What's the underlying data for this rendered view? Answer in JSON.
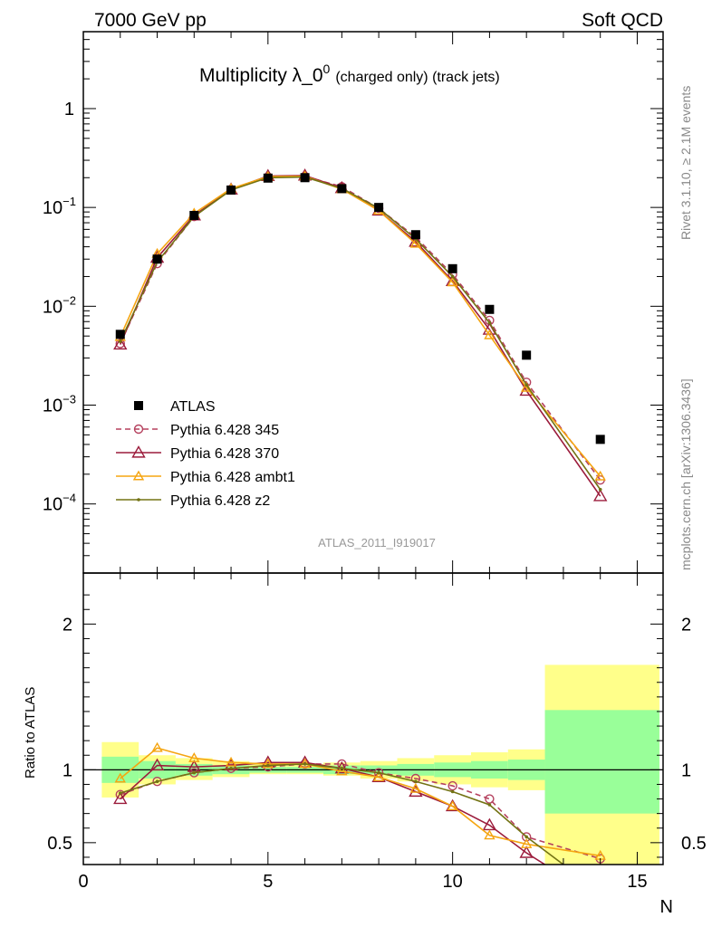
{
  "header": {
    "left": "7000 GeV pp",
    "right": "Soft QCD"
  },
  "side_labels": {
    "rivet": "Rivet 3.1.10, ≥ 2.1M events",
    "mcplots": "mcplots.cern.ch [arXiv:1306.3436]"
  },
  "chart_data": [
    {
      "type": "scatter",
      "title": "Multiplicity λ_0⁰ (charged only) (track jets)",
      "title_main": "Multiplicity λ_0",
      "title_sup": "0",
      "title_suffix": "(charged only) (track jets)",
      "watermark": "ATLAS_2011_I919017",
      "xlim": [
        0,
        15.7
      ],
      "ylim": [
        2e-05,
        6
      ],
      "yscale": "log",
      "y_tick_labels": [
        {
          "value": 0.0001,
          "base": "10",
          "exp": "−4"
        },
        {
          "value": 0.001,
          "base": "10",
          "exp": "−3"
        },
        {
          "value": 0.01,
          "base": "10",
          "exp": "−2"
        },
        {
          "value": 0.1,
          "base": "10",
          "exp": "−1"
        },
        {
          "value": 1,
          "base": "1",
          "exp": ""
        }
      ],
      "legend_position": "bottom-left",
      "data": {
        "name": "ATLAS",
        "x": [
          1,
          2,
          3,
          4,
          5,
          6,
          7,
          8,
          9,
          10,
          11,
          12,
          14
        ],
        "y": [
          0.0052,
          0.03,
          0.083,
          0.15,
          0.198,
          0.2,
          0.155,
          0.1,
          0.053,
          0.024,
          0.0093,
          0.0032,
          0.00045
        ]
      },
      "series": [
        {
          "name": "Pythia 6.428 345",
          "color": "#b5415e",
          "marker": "circle",
          "dashed": true,
          "x": [
            1,
            2,
            3,
            4,
            5,
            6,
            7,
            8,
            9,
            10,
            11,
            12,
            14
          ],
          "y": [
            0.0042,
            0.027,
            0.081,
            0.152,
            0.203,
            0.206,
            0.162,
            0.098,
            0.05,
            0.021,
            0.0072,
            0.0017,
            0.000175
          ]
        },
        {
          "name": "Pythia 6.428 370",
          "color": "#9b1b3b",
          "marker": "triangle",
          "dashed": false,
          "x": [
            1,
            2,
            3,
            4,
            5,
            6,
            7,
            8,
            9,
            10,
            11,
            12,
            14
          ],
          "y": [
            0.0041,
            0.031,
            0.083,
            0.152,
            0.208,
            0.21,
            0.157,
            0.093,
            0.045,
            0.018,
            0.0058,
            0.0014,
            0.00012
          ]
        },
        {
          "name": "Pythia 6.428 ambt1",
          "color": "#f5a511",
          "marker": "triangle-small",
          "dashed": false,
          "x": [
            1,
            2,
            3,
            4,
            5,
            6,
            7,
            8,
            9,
            10,
            11,
            12,
            14
          ],
          "y": [
            0.0049,
            0.034,
            0.087,
            0.155,
            0.205,
            0.207,
            0.153,
            0.093,
            0.043,
            0.0175,
            0.0051,
            0.0015,
            0.00019
          ]
        },
        {
          "name": "Pythia 6.428 z2",
          "color": "#737314",
          "marker": "dot",
          "dashed": false,
          "x": [
            1,
            2,
            3,
            4,
            5,
            6,
            7,
            8,
            9,
            10,
            11,
            12,
            14
          ],
          "y": [
            0.0044,
            0.028,
            0.081,
            0.15,
            0.2,
            0.203,
            0.156,
            0.098,
            0.048,
            0.02,
            0.0068,
            0.0016,
            0.00014
          ]
        }
      ]
    },
    {
      "type": "line",
      "ylabel": "Ratio to ATLAS",
      "xlabel": "N",
      "xlim": [
        0,
        15.7
      ],
      "ylim": [
        0.35,
        2.35
      ],
      "x_ticks": [
        0,
        5,
        10,
        15
      ],
      "y_ticks": [
        0.5,
        1,
        2
      ],
      "bands": [
        {
          "x0": 0.5,
          "x1": 1.5,
          "g_lo": 0.91,
          "g_hi": 1.09,
          "y_lo": 0.81,
          "y_hi": 1.19
        },
        {
          "x0": 1.5,
          "x1": 2.5,
          "g_lo": 0.94,
          "g_hi": 1.06,
          "y_lo": 0.9,
          "y_hi": 1.1
        },
        {
          "x0": 2.5,
          "x1": 3.5,
          "g_lo": 0.96,
          "g_hi": 1.04,
          "y_lo": 0.93,
          "y_hi": 1.08
        },
        {
          "x0": 3.5,
          "x1": 4.5,
          "g_lo": 0.97,
          "g_hi": 1.03,
          "y_lo": 0.95,
          "y_hi": 1.06
        },
        {
          "x0": 4.5,
          "x1": 5.5,
          "g_lo": 0.98,
          "g_hi": 1.02,
          "y_lo": 0.97,
          "y_hi": 1.04
        },
        {
          "x0": 5.5,
          "x1": 6.5,
          "g_lo": 0.98,
          "g_hi": 1.02,
          "y_lo": 0.97,
          "y_hi": 1.04
        },
        {
          "x0": 6.5,
          "x1": 7.5,
          "g_lo": 0.97,
          "g_hi": 1.03,
          "y_lo": 0.96,
          "y_hi": 1.05
        },
        {
          "x0": 7.5,
          "x1": 8.5,
          "g_lo": 0.97,
          "g_hi": 1.03,
          "y_lo": 0.94,
          "y_hi": 1.06
        },
        {
          "x0": 8.5,
          "x1": 9.5,
          "g_lo": 0.96,
          "g_hi": 1.04,
          "y_lo": 0.92,
          "y_hi": 1.08
        },
        {
          "x0": 9.5,
          "x1": 10.5,
          "g_lo": 0.95,
          "g_hi": 1.05,
          "y_lo": 0.9,
          "y_hi": 1.1
        },
        {
          "x0": 10.5,
          "x1": 11.5,
          "g_lo": 0.94,
          "g_hi": 1.06,
          "y_lo": 0.88,
          "y_hi": 1.12
        },
        {
          "x0": 11.5,
          "x1": 12.5,
          "g_lo": 0.93,
          "g_hi": 1.07,
          "y_lo": 0.86,
          "y_hi": 1.14
        },
        {
          "x0": 12.5,
          "x1": 15.6,
          "g_lo": 0.7,
          "g_hi": 1.41,
          "y_lo": 0.35,
          "y_hi": 1.72
        }
      ],
      "series": [
        {
          "name": "Pythia 6.428 345",
          "color": "#b5415e",
          "marker": "circle",
          "dashed": true,
          "x": [
            1,
            2,
            3,
            4,
            5,
            6,
            7,
            8,
            9,
            10,
            11,
            12,
            14
          ],
          "y": [
            0.83,
            0.92,
            0.98,
            1.01,
            1.02,
            1.04,
            1.04,
            0.98,
            0.94,
            0.89,
            0.8,
            0.54,
            0.39
          ]
        },
        {
          "name": "Pythia 6.428 370",
          "color": "#9b1b3b",
          "marker": "triangle",
          "dashed": false,
          "x": [
            1,
            2,
            3,
            4,
            5,
            6,
            7,
            8,
            9,
            10,
            11,
            12,
            12.5
          ],
          "y": [
            0.8,
            1.03,
            1.02,
            1.03,
            1.05,
            1.05,
            1.01,
            0.95,
            0.85,
            0.75,
            0.62,
            0.43,
            0.35
          ]
        },
        {
          "name": "Pythia 6.428 ambt1",
          "color": "#f5a511",
          "marker": "triangle-small",
          "dashed": false,
          "x": [
            1,
            2,
            3,
            4,
            5,
            6,
            7,
            8,
            9,
            10,
            11,
            12,
            14
          ],
          "y": [
            0.94,
            1.15,
            1.08,
            1.05,
            1.04,
            1.04,
            0.99,
            0.95,
            0.87,
            0.75,
            0.55,
            0.49,
            0.41
          ]
        },
        {
          "name": "Pythia 6.428 z2",
          "color": "#737314",
          "marker": "dot",
          "dashed": false,
          "x": [
            1,
            2,
            3,
            4,
            5,
            6,
            7,
            8,
            9,
            10,
            11,
            12,
            13
          ],
          "y": [
            0.84,
            0.92,
            0.98,
            1.01,
            1.03,
            1.04,
            1.01,
            0.98,
            0.92,
            0.85,
            0.76,
            0.54,
            0.35
          ]
        }
      ]
    }
  ]
}
